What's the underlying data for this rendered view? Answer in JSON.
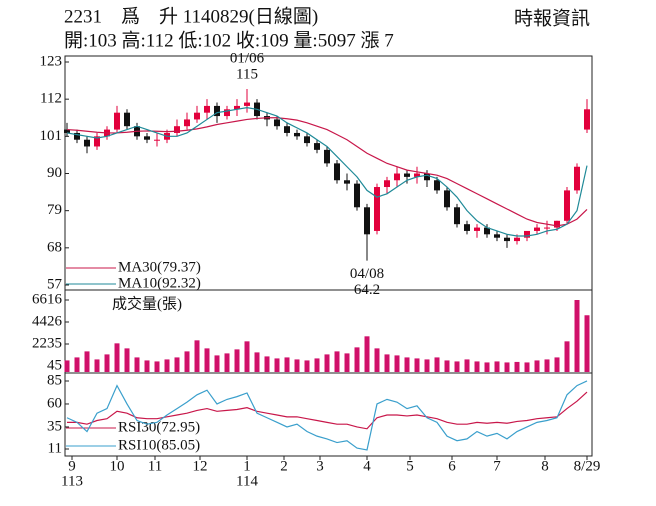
{
  "header": {
    "title": "2231　爲　升 1140829(日線圖)",
    "quote": "開:103 高:112 低:102 收:109 量:5097 漲 7",
    "source": "時報資訊"
  },
  "chart_data": [
    {
      "type": "candlestick",
      "up_color": "#e2003c",
      "down_color": "#111111",
      "open": [
        103,
        102,
        100,
        98,
        101,
        103,
        108,
        104,
        101,
        100,
        100,
        102,
        104,
        106,
        108,
        110,
        107,
        109,
        110,
        111,
        107,
        106,
        104,
        102,
        101,
        99,
        97,
        93,
        88,
        87,
        80,
        73,
        86,
        88,
        90,
        89,
        90,
        88,
        85,
        80,
        75,
        73,
        74,
        72,
        71,
        70,
        71,
        73,
        74,
        74,
        76,
        85,
        103
      ],
      "high": [
        105,
        103,
        101,
        102,
        104,
        110,
        109,
        105,
        102,
        102,
        103,
        106,
        108,
        110,
        112,
        111,
        110,
        112,
        115,
        112,
        108,
        107,
        105,
        103,
        102,
        100,
        98,
        94,
        90,
        88,
        81,
        87,
        89,
        92,
        91,
        92,
        91,
        89,
        86,
        81,
        76,
        75,
        75,
        73,
        72,
        72,
        73,
        75,
        76,
        76,
        86,
        93,
        112
      ],
      "low": [
        101,
        99,
        96,
        97,
        100,
        102,
        103,
        100,
        99,
        98,
        99,
        101,
        103,
        105,
        106,
        105,
        106,
        107,
        108,
        106,
        104,
        103,
        101,
        100,
        98,
        96,
        92,
        87,
        85,
        79,
        64.2,
        72,
        84,
        86,
        87,
        87,
        86,
        84,
        79,
        74,
        72,
        71,
        71,
        70,
        68,
        69,
        70,
        72,
        72,
        73,
        75,
        84,
        102
      ],
      "close": [
        102,
        100,
        98,
        101,
        103,
        108,
        104,
        101,
        100,
        100,
        102,
        104,
        106,
        108,
        110,
        107,
        109,
        110,
        111,
        107,
        106,
        104,
        102,
        101,
        99,
        97,
        93,
        88,
        87,
        80,
        72,
        86,
        88,
        90,
        89,
        90,
        88,
        85,
        80,
        75,
        73,
        74,
        72,
        71,
        70,
        71,
        73,
        74,
        74,
        76,
        85,
        92,
        109
      ],
      "series": [
        {
          "name": "MA30(79.37)",
          "color": "#c8174a",
          "values": [
            103,
            102.8,
            102.5,
            102.2,
            102,
            102,
            102.2,
            102.5,
            102.6,
            102.5,
            102.4,
            102.5,
            102.8,
            103.2,
            103.8,
            104.5,
            105,
            105.5,
            106,
            106.3,
            106.5,
            106.5,
            106.2,
            105.8,
            105,
            104,
            103,
            101.5,
            100,
            98,
            96,
            94.5,
            93,
            92,
            91,
            90.5,
            90,
            89.5,
            88.5,
            87,
            85.5,
            84,
            82.5,
            81,
            79.5,
            78,
            76.5,
            75.5,
            75,
            74.5,
            75,
            76.5,
            79.37
          ]
        },
        {
          "name": "MA10(92.32)",
          "color": "#1f8a98",
          "values": [
            102,
            101.5,
            101,
            100.5,
            101,
            102,
            103,
            104,
            103,
            102,
            101,
            101,
            102,
            104,
            106,
            108,
            108.5,
            109,
            109.5,
            109,
            108,
            107,
            105,
            103.5,
            102,
            100,
            98,
            95,
            92,
            89,
            85,
            83,
            84,
            86,
            88,
            89,
            89.5,
            88.5,
            86,
            83,
            79,
            76,
            74,
            73,
            72,
            71.5,
            71.5,
            72,
            73,
            73.5,
            75,
            79,
            92.32
          ]
        }
      ],
      "ylim": [
        57,
        123
      ],
      "yticks": [
        57,
        68,
        79,
        90,
        101,
        112,
        123
      ],
      "annotations": [
        {
          "x": 18,
          "label": "01/06",
          "value": 115,
          "at": "high"
        },
        {
          "x": 30,
          "label": "04/08",
          "value": 64.2,
          "at": "low"
        }
      ]
    },
    {
      "type": "bar",
      "title": "成交量(張)",
      "color": "#d0106a",
      "values": [
        600,
        900,
        1500,
        700,
        1200,
        2300,
        1800,
        900,
        600,
        500,
        700,
        900,
        1500,
        2600,
        1800,
        1100,
        1300,
        1700,
        2500,
        1400,
        1000,
        800,
        900,
        700,
        600,
        800,
        1200,
        1500,
        1300,
        1900,
        3000,
        1800,
        1200,
        1100,
        900,
        800,
        700,
        900,
        600,
        500,
        700,
        500,
        400,
        500,
        400,
        450,
        400,
        600,
        700,
        900,
        2500,
        6616,
        5097
      ],
      "ylim": [
        45,
        6616
      ],
      "yticks": [
        45,
        2235,
        4426,
        6616
      ]
    },
    {
      "type": "line",
      "series": [
        {
          "name": "RSI30(72.95)",
          "color": "#c8174a",
          "values": [
            40,
            40,
            38,
            42,
            44,
            52,
            50,
            45,
            44,
            44,
            46,
            48,
            50,
            53,
            55,
            52,
            53,
            54,
            56,
            52,
            50,
            48,
            46,
            46,
            44,
            42,
            40,
            38,
            38,
            35,
            33,
            45,
            48,
            48,
            47,
            48,
            46,
            44,
            40,
            38,
            38,
            40,
            39,
            40,
            39,
            41,
            42,
            44,
            45,
            46,
            55,
            63,
            72.95
          ]
        },
        {
          "name": "RSI10(85.05)",
          "color": "#3a9fcc",
          "values": [
            45,
            40,
            30,
            50,
            55,
            80,
            60,
            42,
            38,
            40,
            48,
            55,
            62,
            70,
            75,
            60,
            65,
            68,
            72,
            50,
            45,
            40,
            35,
            38,
            30,
            25,
            22,
            18,
            20,
            12,
            10,
            60,
            65,
            62,
            55,
            58,
            45,
            40,
            25,
            20,
            22,
            30,
            25,
            28,
            22,
            30,
            35,
            40,
            42,
            45,
            70,
            80,
            85.05
          ]
        }
      ],
      "ylim": [
        11,
        85
      ],
      "yticks": [
        11,
        35,
        60,
        85
      ],
      "xlim": [
        0,
        52
      ],
      "xticks": [
        {
          "value": 0.5,
          "label": "9"
        },
        {
          "value": 5,
          "label": "10"
        },
        {
          "value": 8.8,
          "label": "11"
        },
        {
          "value": 13.3,
          "label": "12"
        },
        {
          "value": 18,
          "label": "1"
        },
        {
          "value": 21.7,
          "label": "2"
        },
        {
          "value": 25.3,
          "label": "3"
        },
        {
          "value": 30,
          "label": "4"
        },
        {
          "value": 34.3,
          "label": "5"
        },
        {
          "value": 38.5,
          "label": "6"
        },
        {
          "value": 43,
          "label": "7"
        },
        {
          "value": 47.8,
          "label": "8"
        },
        {
          "value": 52,
          "label": "8/29"
        }
      ],
      "year_labels": [
        {
          "value": 0.5,
          "label": "113"
        },
        {
          "value": 18,
          "label": "114"
        }
      ]
    }
  ]
}
